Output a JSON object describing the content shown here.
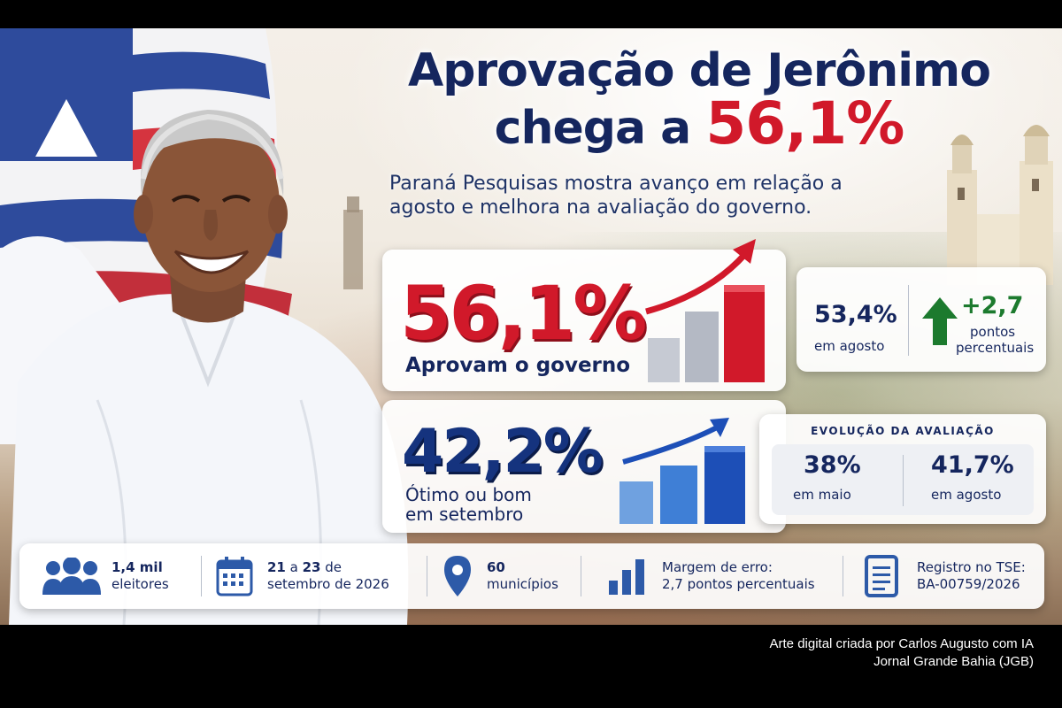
{
  "headline": {
    "line1": "Aprovação de Jerônimo",
    "line2_prefix": "chega a ",
    "line2_highlight": "56,1%"
  },
  "subtitle": {
    "line1": "Paraná Pesquisas mostra avanço em relação a",
    "line2": "agosto e melhora na avaliação do governo."
  },
  "approval": {
    "value": "56,1%",
    "label": "Aprovam o governo",
    "previous_value": "53,4%",
    "previous_label": "em agosto",
    "change_value": "+2,7",
    "change_label_line1": "pontos",
    "change_label_line2": "percentuais"
  },
  "rating": {
    "value": "42,2%",
    "label_line1": "Ótimo ou bom",
    "label_line2": "em setembro",
    "evolution_title": "EVOLUÇÃO DA AVALIAÇÃO",
    "may_value": "38%",
    "may_label": "em maio",
    "august_value": "41,7%",
    "august_label": "em agosto"
  },
  "info_bar": {
    "voters": {
      "icon": "people-icon",
      "bold": "1,4 mil",
      "text": "eleitores"
    },
    "dates": {
      "icon": "calendar-icon",
      "bold1": "21",
      "mid": " a ",
      "bold2": "23",
      "rest1": " de",
      "line2": "setembro de 2026"
    },
    "municipalities": {
      "icon": "location-pin-icon",
      "bold": "60",
      "text": "municípios"
    },
    "margin": {
      "icon": "bar-chart-icon",
      "line1": "Margem de erro:",
      "line2": "2,7 pontos percentuais"
    },
    "registry": {
      "icon": "document-icon",
      "line1": "Registro no TSE:",
      "line2": "BA-00759/2026"
    }
  },
  "credit": {
    "line1": "Arte digital criada por Carlos Augusto com IA",
    "line2": "Jornal Grande Bahia (JGB)"
  },
  "colors": {
    "navy": "#15265e",
    "red": "#d1192a",
    "green": "#1c7a2e",
    "blue": "#15337e"
  }
}
